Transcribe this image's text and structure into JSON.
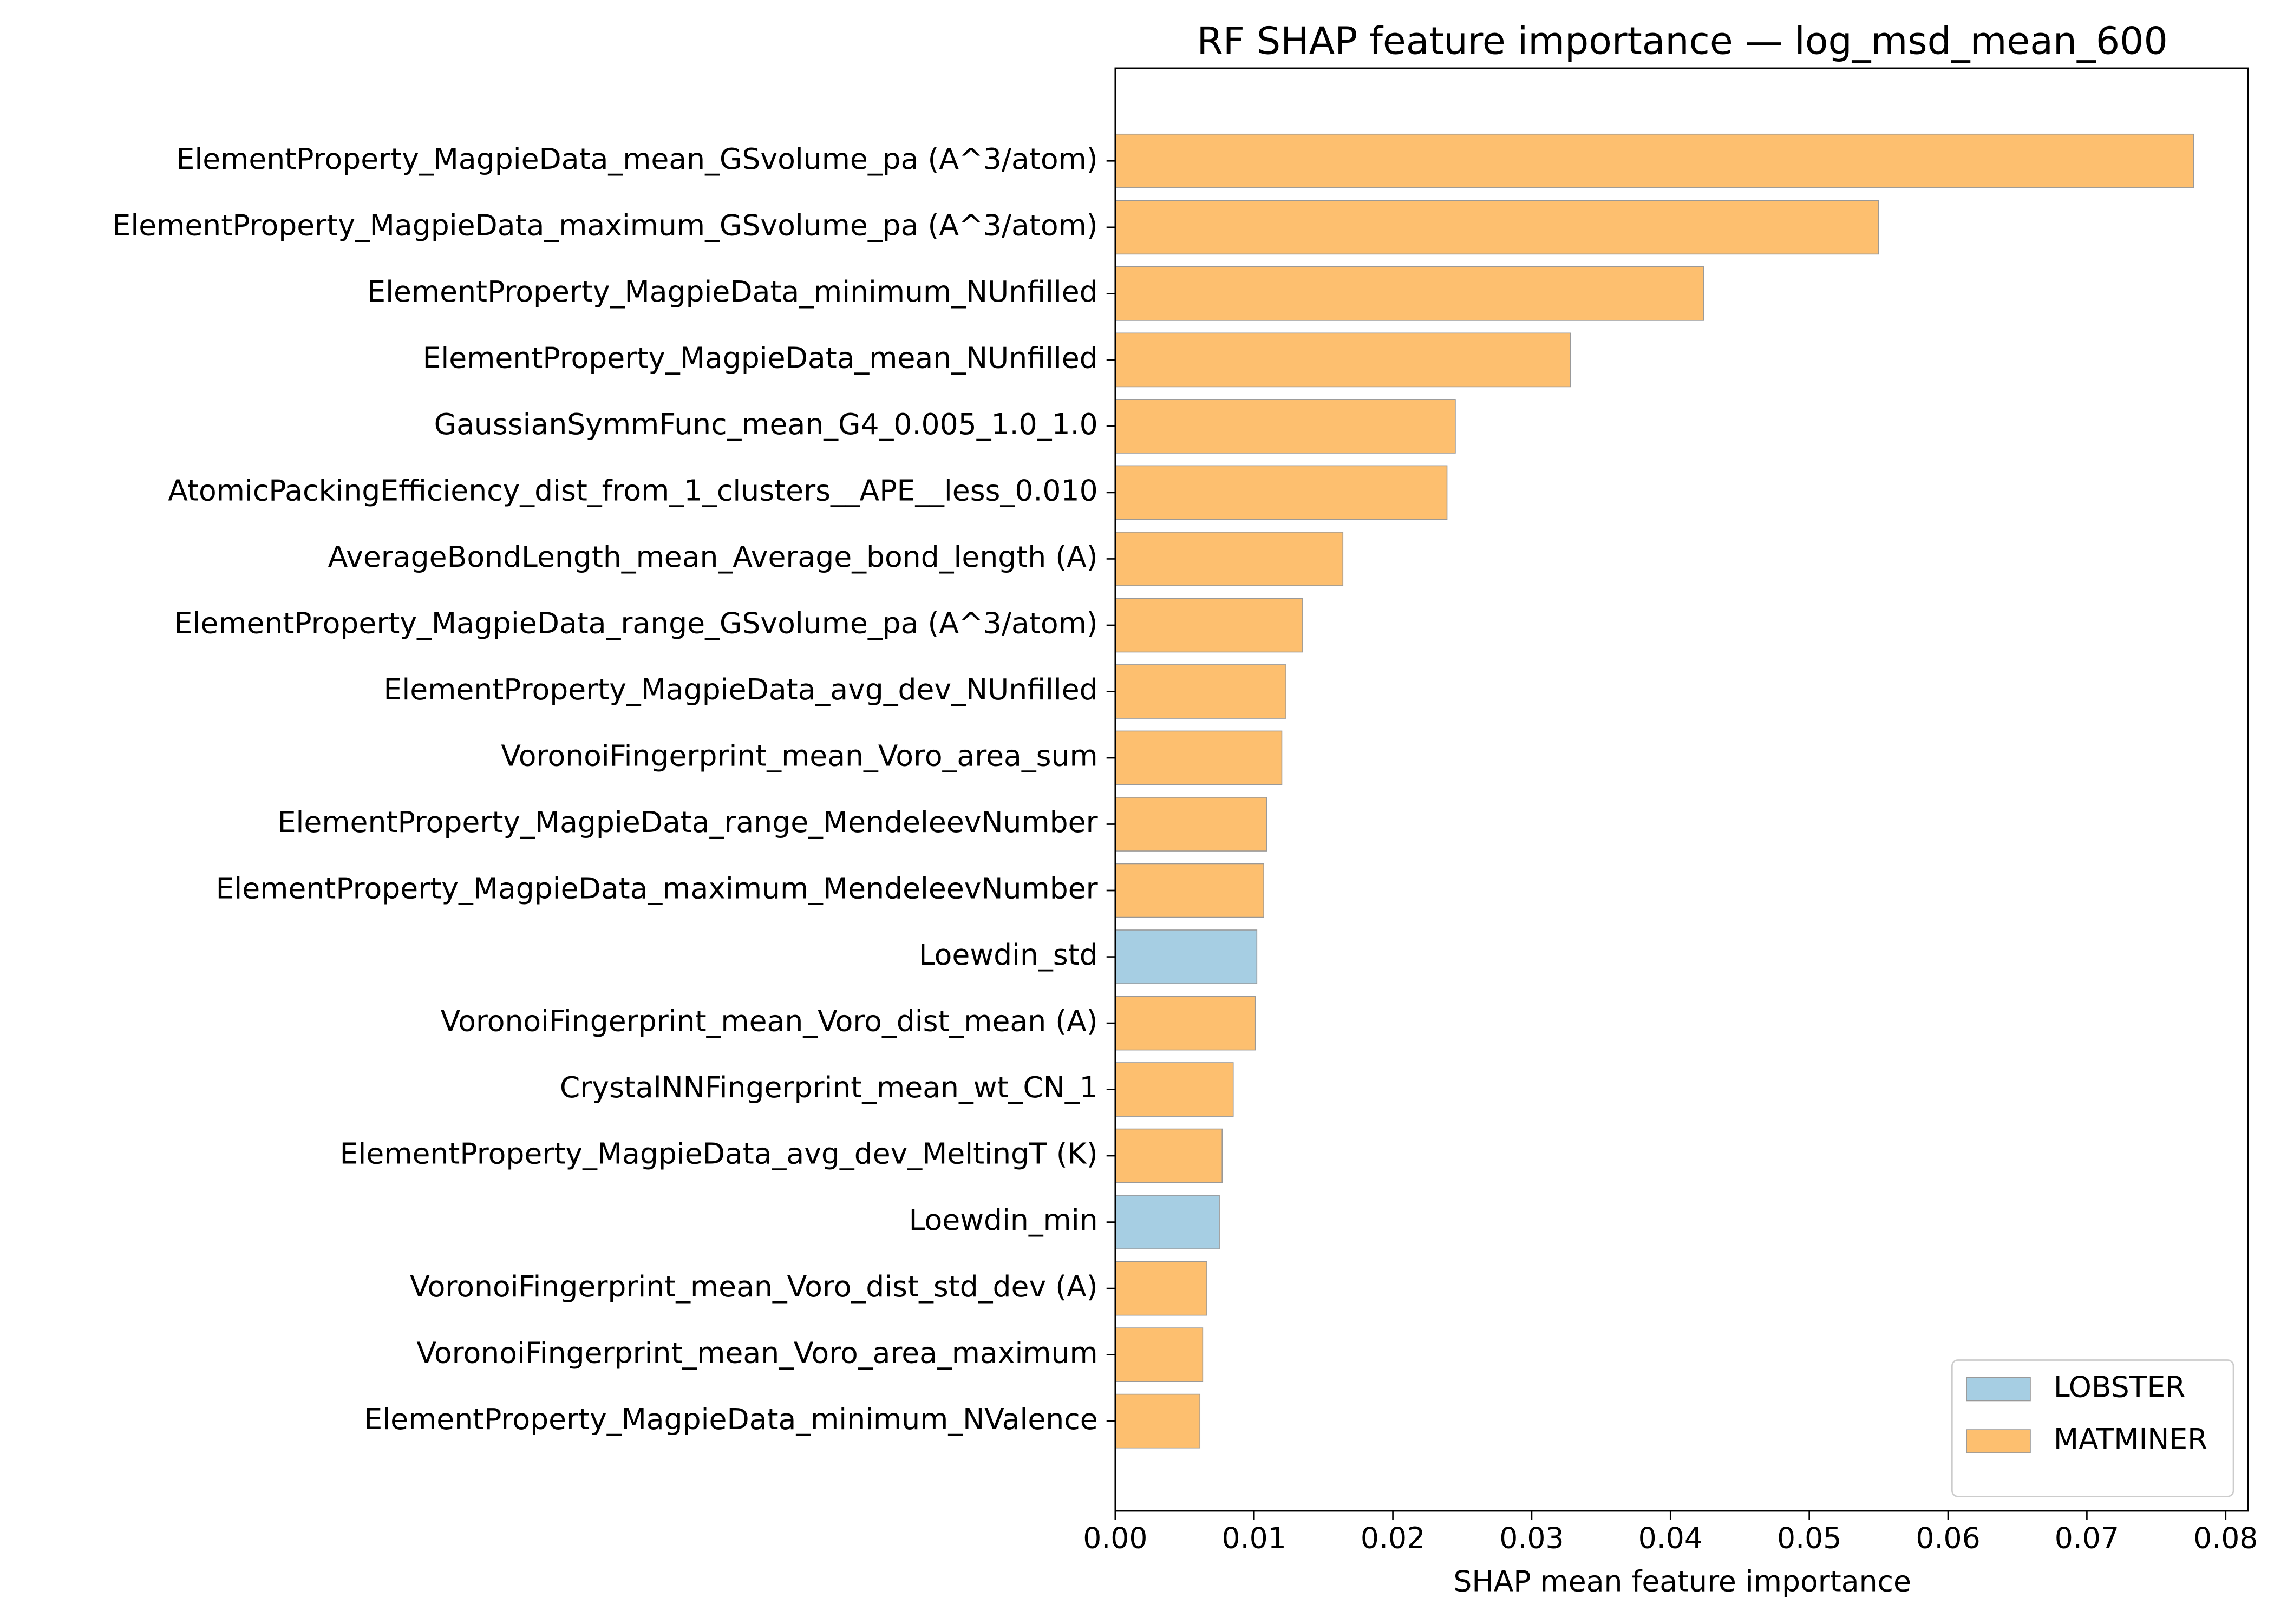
{
  "chart_data": {
    "type": "barh",
    "title": "RF SHAP feature importance — log_msd_mean_600",
    "x_label": "SHAP mean feature importance",
    "categories": [
      "ElementProperty_MagpieData_mean_GSvolume_pa (A^3/atom)",
      "ElementProperty_MagpieData_maximum_GSvolume_pa (A^3/atom)",
      "ElementProperty_MagpieData_minimum_NUnfilled",
      "ElementProperty_MagpieData_mean_NUnfilled",
      "GaussianSymmFunc_mean_G4_0.005_1.0_1.0",
      "AtomicPackingEfficiency_dist_from_1_clusters__APE__less_0.010",
      "AverageBondLength_mean_Average_bond_length (A)",
      "ElementProperty_MagpieData_range_GSvolume_pa (A^3/atom)",
      "ElementProperty_MagpieData_avg_dev_NUnfilled",
      "VoronoiFingerprint_mean_Voro_area_sum",
      "ElementProperty_MagpieData_range_MendeleevNumber",
      "ElementProperty_MagpieData_maximum_MendeleevNumber",
      "Loewdin_std",
      "VoronoiFingerprint_mean_Voro_dist_mean (A)",
      "CrystalNNFingerprint_mean_wt_CN_1",
      "ElementProperty_MagpieData_avg_dev_MeltingT (K)",
      "Loewdin_min",
      "VoronoiFingerprint_mean_Voro_dist_std_dev (A)",
      "VoronoiFingerprint_mean_Voro_area_maximum",
      "ElementProperty_MagpieData_minimum_NValence"
    ],
    "series": [
      {
        "name": "LOBSTER",
        "color": "#a6cee3",
        "values": [
          null,
          null,
          null,
          null,
          null,
          null,
          null,
          null,
          null,
          null,
          null,
          null,
          0.0102,
          null,
          null,
          null,
          0.0075,
          null,
          null,
          null
        ]
      },
      {
        "name": "MATMINER",
        "color": "#fdbf6f",
        "values": [
          0.0777,
          0.055,
          0.0424,
          0.0328,
          0.0245,
          0.0239,
          0.0164,
          0.0135,
          0.0123,
          0.012,
          0.0109,
          0.0107,
          null,
          0.0101,
          0.0085,
          0.0077,
          null,
          0.0066,
          0.0063,
          0.0061
        ]
      }
    ],
    "xlim": [
      0,
      0.0816
    ],
    "xticks": [
      {
        "value": 0,
        "label": "0.00"
      },
      {
        "value": 0.01,
        "label": "0.01"
      },
      {
        "value": 0.02,
        "label": "0.02"
      },
      {
        "value": 0.03,
        "label": "0.03"
      },
      {
        "value": 0.04,
        "label": "0.04"
      },
      {
        "value": 0.05,
        "label": "0.05"
      },
      {
        "value": 0.06,
        "label": "0.06"
      },
      {
        "value": 0.07,
        "label": "0.07"
      },
      {
        "value": 0.08,
        "label": "0.08"
      }
    ],
    "legend": "lower right"
  }
}
